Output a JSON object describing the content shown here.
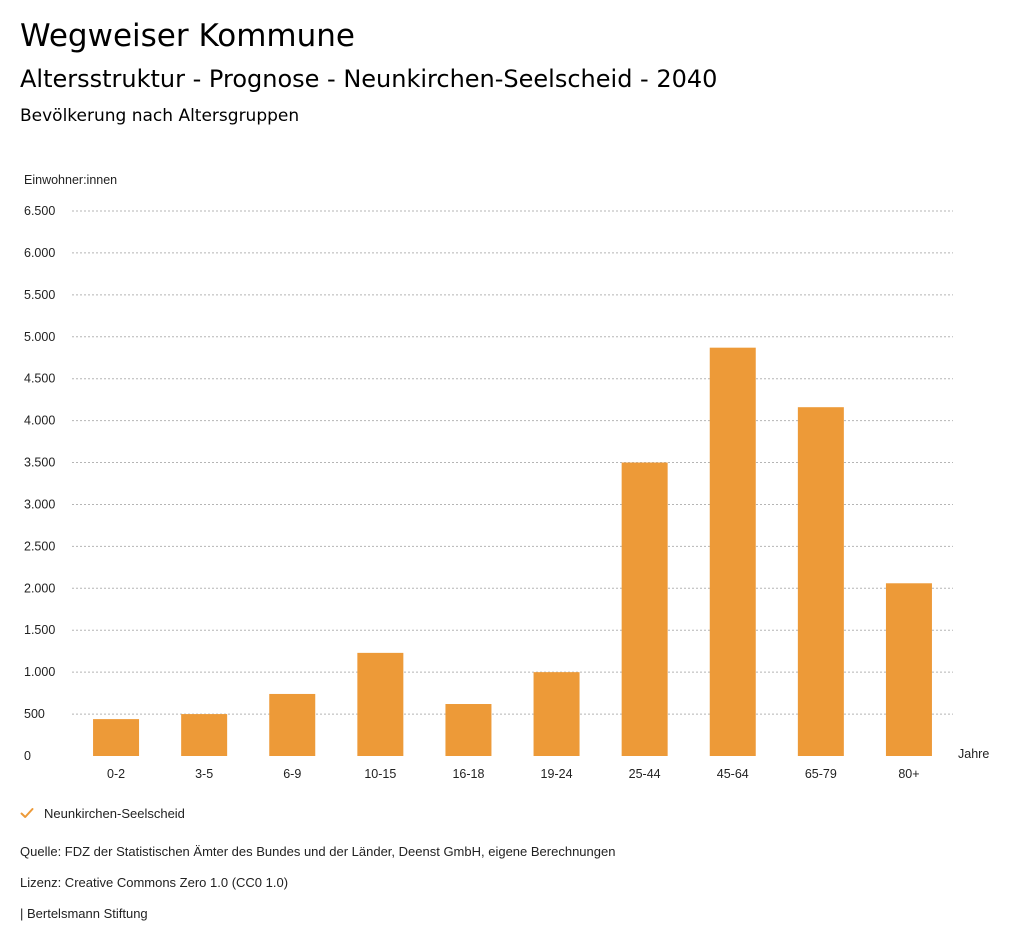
{
  "header": {
    "title": "Wegweiser Kommune",
    "subtitle": "Altersstruktur - Prognose - Neunkirchen-Seelscheid - 2040",
    "section_title": "Bevölkerung nach Altersgruppen"
  },
  "colors": {
    "bar": "#ed9a38",
    "grid": "#b5b5b5",
    "text": "#222222"
  },
  "chart_data": {
    "type": "bar",
    "title": "Bevölkerung nach Altersgruppen",
    "ylabel": "Einwohner:innen",
    "xlabel": "Jahre",
    "categories": [
      "0-2",
      "3-5",
      "6-9",
      "10-15",
      "16-18",
      "19-24",
      "25-44",
      "45-64",
      "65-79",
      "80+"
    ],
    "series": [
      {
        "name": "Neunkirchen-Seelscheid",
        "values": [
          440,
          500,
          740,
          1230,
          620,
          1000,
          3500,
          4870,
          4160,
          2060
        ]
      }
    ],
    "ylim": [
      0,
      6500
    ],
    "yticks": [
      0,
      500,
      1000,
      1500,
      2000,
      2500,
      3000,
      3500,
      4000,
      4500,
      5000,
      5500,
      6000,
      6500
    ],
    "ytick_labels": [
      "0",
      "500",
      "1.000",
      "1.500",
      "2.000",
      "2.500",
      "3.000",
      "3.500",
      "4.000",
      "4.500",
      "5.000",
      "5.500",
      "6.000",
      "6.500"
    ],
    "grid": true,
    "legend_position": "bottom-left"
  },
  "legend": {
    "label": "Neunkirchen-Seelscheid",
    "icon": "checkmark-icon"
  },
  "footer": {
    "source": "Quelle: FDZ der Statistischen Ämter des Bundes und der Länder, Deenst GmbH, eigene Berechnungen",
    "license": "Lizenz: Creative Commons Zero 1.0 (CC0 1.0)",
    "publisher": "| Bertelsmann Stiftung"
  }
}
